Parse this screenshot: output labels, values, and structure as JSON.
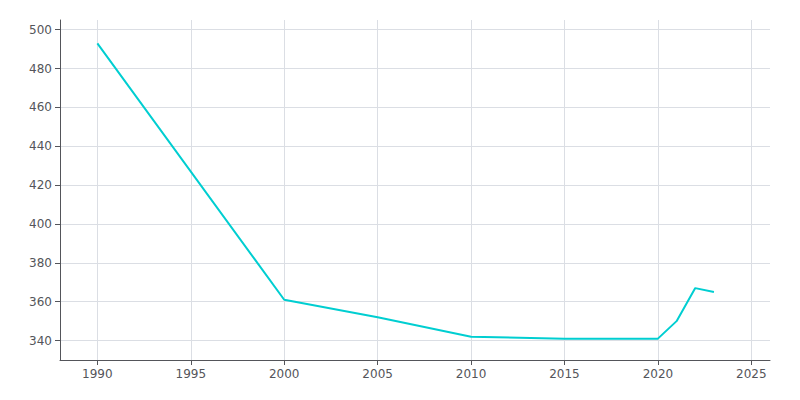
{
  "chart_data": {
    "type": "line",
    "x": [
      1990,
      2000,
      2005,
      2010,
      2015,
      2020,
      2021,
      2022,
      2023
    ],
    "values": [
      493,
      361,
      352,
      342,
      341,
      341,
      350,
      367,
      365
    ],
    "color": "#00CED1",
    "xlim": [
      1988,
      2026
    ],
    "xticks": [
      1990,
      1995,
      2000,
      2005,
      2010,
      2015,
      2020,
      2025
    ],
    "ylim": [
      330,
      505
    ],
    "yticks": [
      340,
      360,
      380,
      400,
      420,
      440,
      460,
      480,
      500
    ],
    "grid": true
  }
}
